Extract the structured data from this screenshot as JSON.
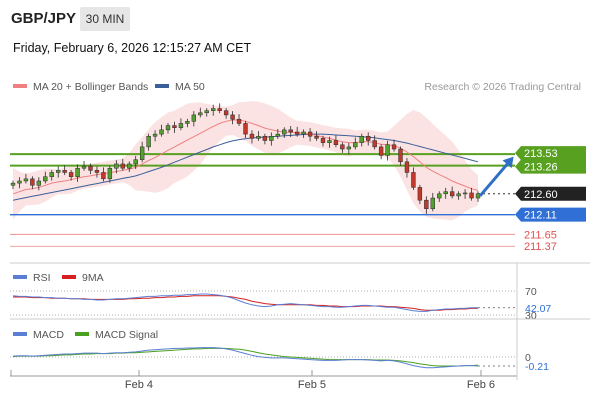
{
  "header": {
    "symbol": "GBP/JPY",
    "interval": "30 MIN",
    "datetime": "Friday, February 6, 2026 12:15:27 AM CET"
  },
  "colors": {
    "ma20": "#f08080",
    "ma50": "#3a5f99",
    "bollinger_fill": "#fcdede",
    "resistance": "#58a020",
    "support": "#2f6fd6",
    "target": "#e05050",
    "candle": "#2a2a2a",
    "up_candle": "#54a032",
    "down_candle": "#c0392b",
    "rsi": "#5a7fd4",
    "rsi_ma": "#d42020",
    "macd": "#5a7fd4",
    "macd_signal": "#4aa020",
    "arrow": "#2f6fc6"
  },
  "chart_data": [
    {
      "type": "candlestick",
      "legend": [
        "MA 20 + Bollinger Bands",
        "MA 50"
      ],
      "legend_placement": "top-left",
      "watermark": "Research © 2026 Trading Central",
      "x_ticks": [
        "Feb 4",
        "Feb 5",
        "Feb 6"
      ],
      "ylim": [
        211.0,
        214.8
      ],
      "last_price": 212.6,
      "levels": [
        {
          "value": 213.53,
          "label": "213.53",
          "style": "resistance"
        },
        {
          "value": 213.26,
          "label": "213.26",
          "style": "resistance"
        },
        {
          "value": 212.6,
          "label": "212.60",
          "style": "last"
        },
        {
          "value": 212.11,
          "label": "212.11",
          "style": "support"
        },
        {
          "value": 211.65,
          "label": "211.65",
          "style": "target"
        },
        {
          "value": 211.37,
          "label": "211.37",
          "style": "target"
        }
      ],
      "projection": {
        "from": 212.55,
        "to": 213.4
      },
      "close": [
        212.85,
        212.9,
        212.95,
        212.8,
        212.9,
        213.0,
        213.1,
        213.15,
        213.1,
        213.0,
        213.2,
        213.25,
        213.15,
        213.1,
        212.95,
        213.2,
        213.3,
        213.2,
        213.3,
        213.4,
        213.7,
        213.95,
        214.0,
        214.1,
        214.2,
        214.15,
        214.25,
        214.3,
        214.45,
        214.5,
        214.55,
        214.6,
        214.55,
        214.45,
        214.35,
        214.25,
        214.0,
        213.9,
        213.95,
        213.85,
        213.95,
        214.0,
        214.1,
        214.05,
        214.0,
        214.05,
        213.95,
        213.9,
        213.8,
        213.85,
        213.75,
        213.65,
        213.7,
        213.8,
        213.95,
        213.85,
        213.7,
        213.5,
        213.75,
        213.65,
        213.35,
        213.1,
        212.75,
        212.45,
        212.25,
        212.5,
        212.6,
        212.65,
        212.55,
        212.6,
        212.62,
        212.5,
        212.6
      ],
      "ma20": [
        212.6,
        212.65,
        212.7,
        212.72,
        212.75,
        212.8,
        212.85,
        212.88,
        212.9,
        212.93,
        212.97,
        213.0,
        213.02,
        213.05,
        213.07,
        213.1,
        213.12,
        213.15,
        213.18,
        213.22,
        213.3,
        213.38,
        213.45,
        213.53,
        213.62,
        213.7,
        213.78,
        213.86,
        213.94,
        214.02,
        214.1,
        214.18,
        214.25,
        214.3,
        214.33,
        214.33,
        214.3,
        214.25,
        214.2,
        214.14,
        214.1,
        214.07,
        214.05,
        214.04,
        214.03,
        214.02,
        214.0,
        213.97,
        213.93,
        213.9,
        213.86,
        213.82,
        213.8,
        213.8,
        213.82,
        213.82,
        213.8,
        213.76,
        213.75,
        213.73,
        213.67,
        213.58,
        213.47,
        213.35,
        213.22,
        213.13,
        213.05,
        212.98,
        212.9,
        212.84,
        212.78,
        212.72,
        212.68
      ],
      "ma50": [
        212.45,
        212.48,
        212.51,
        212.54,
        212.57,
        212.6,
        212.63,
        212.66,
        212.69,
        212.72,
        212.75,
        212.78,
        212.81,
        212.84,
        212.87,
        212.9,
        212.93,
        212.96,
        212.99,
        213.02,
        213.07,
        213.12,
        213.17,
        213.22,
        213.28,
        213.34,
        213.4,
        213.46,
        213.52,
        213.58,
        213.64,
        213.7,
        213.75,
        213.8,
        213.84,
        213.87,
        213.89,
        213.91,
        213.92,
        213.93,
        213.94,
        213.95,
        213.96,
        213.97,
        213.98,
        213.99,
        214.0,
        214.0,
        214.0,
        213.99,
        213.98,
        213.97,
        213.96,
        213.95,
        213.94,
        213.93,
        213.91,
        213.89,
        213.87,
        213.85,
        213.82,
        213.79,
        213.75,
        213.71,
        213.67,
        213.63,
        213.59,
        213.55,
        213.51,
        213.47,
        213.43,
        213.39,
        213.35
      ]
    },
    {
      "type": "line",
      "legend": [
        "RSI",
        "9MA"
      ],
      "ylim": [
        25,
        75
      ],
      "ref_lines": [
        70,
        30
      ],
      "ref_labels": [
        "70",
        "30"
      ],
      "last_value_label": "42.07",
      "rsi": [
        62,
        61,
        61,
        60,
        60,
        59,
        59,
        58,
        58,
        57,
        57,
        56,
        56,
        55,
        55,
        56,
        57,
        57,
        58,
        59,
        60,
        61,
        61,
        62,
        62,
        63,
        63,
        64,
        64,
        65,
        65,
        64,
        63,
        61,
        58,
        54,
        50,
        47,
        45,
        44,
        45,
        47,
        48,
        49,
        48,
        47,
        46,
        45,
        44,
        44,
        43,
        43,
        44,
        45,
        46,
        46,
        45,
        44,
        43,
        43,
        41,
        39,
        37,
        36,
        36,
        38,
        39,
        40,
        40,
        41,
        41,
        42,
        42.07
      ],
      "rsi_ma": [
        60,
        60,
        60,
        59,
        59,
        59,
        58,
        58,
        58,
        57,
        57,
        57,
        56,
        56,
        56,
        56,
        56,
        56,
        57,
        57,
        58,
        58,
        59,
        59,
        60,
        60,
        61,
        61,
        62,
        62,
        62,
        62,
        62,
        61,
        60,
        58,
        56,
        53,
        51,
        49,
        48,
        47,
        47,
        47,
        47,
        47,
        47,
        46,
        46,
        45,
        45,
        44,
        44,
        44,
        45,
        45,
        45,
        45,
        44,
        44,
        43,
        42,
        41,
        39,
        38,
        38,
        38,
        39,
        39,
        40,
        40,
        41,
        41
      ]
    },
    {
      "type": "line",
      "legend": [
        "MACD",
        "MACD Signal"
      ],
      "ylim": [
        -0.35,
        0.35
      ],
      "ref_lines": [
        0
      ],
      "ref_labels": [
        "0"
      ],
      "last_value_label": "-0.21",
      "macd": [
        0.02,
        0.03,
        0.03,
        0.02,
        0.03,
        0.04,
        0.05,
        0.06,
        0.07,
        0.07,
        0.08,
        0.09,
        0.09,
        0.09,
        0.08,
        0.09,
        0.1,
        0.1,
        0.11,
        0.12,
        0.14,
        0.16,
        0.17,
        0.18,
        0.19,
        0.2,
        0.2,
        0.21,
        0.21,
        0.22,
        0.22,
        0.22,
        0.21,
        0.19,
        0.16,
        0.12,
        0.08,
        0.04,
        0.01,
        -0.01,
        -0.02,
        -0.02,
        -0.02,
        -0.03,
        -0.04,
        -0.05,
        -0.06,
        -0.07,
        -0.08,
        -0.08,
        -0.08,
        -0.07,
        -0.06,
        -0.06,
        -0.06,
        -0.07,
        -0.08,
        -0.09,
        -0.08,
        -0.09,
        -0.12,
        -0.16,
        -0.2,
        -0.23,
        -0.25,
        -0.25,
        -0.24,
        -0.23,
        -0.22,
        -0.21,
        -0.2,
        -0.2,
        -0.21
      ],
      "macd_signal": [
        0.01,
        0.02,
        0.02,
        0.02,
        0.02,
        0.03,
        0.03,
        0.04,
        0.05,
        0.05,
        0.06,
        0.07,
        0.07,
        0.08,
        0.08,
        0.08,
        0.09,
        0.09,
        0.1,
        0.1,
        0.11,
        0.12,
        0.13,
        0.14,
        0.15,
        0.16,
        0.17,
        0.18,
        0.19,
        0.19,
        0.2,
        0.2,
        0.2,
        0.2,
        0.19,
        0.18,
        0.16,
        0.13,
        0.1,
        0.07,
        0.05,
        0.03,
        0.01,
        0.0,
        -0.01,
        -0.02,
        -0.03,
        -0.04,
        -0.05,
        -0.06,
        -0.06,
        -0.06,
        -0.06,
        -0.06,
        -0.06,
        -0.06,
        -0.07,
        -0.07,
        -0.07,
        -0.08,
        -0.09,
        -0.11,
        -0.13,
        -0.16,
        -0.18,
        -0.2,
        -0.21,
        -0.21,
        -0.21,
        -0.21,
        -0.2,
        -0.2,
        -0.19
      ]
    }
  ]
}
